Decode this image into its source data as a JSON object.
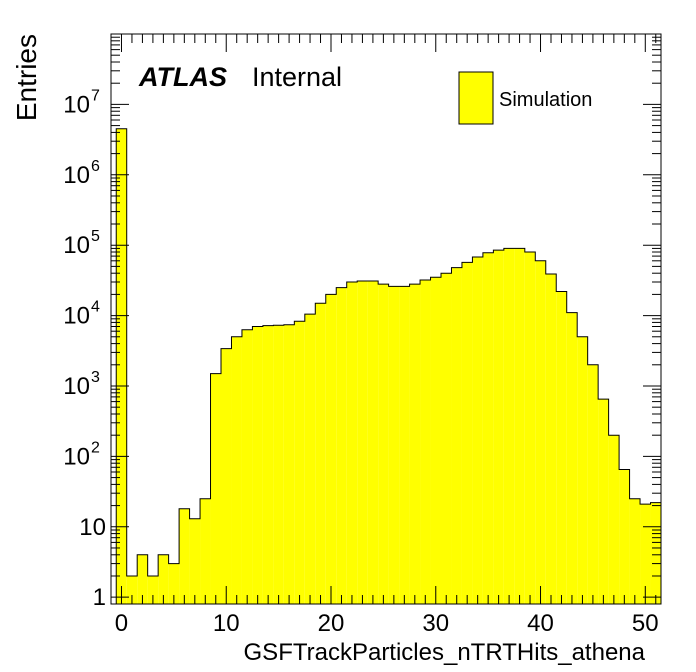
{
  "chart_data": {
    "type": "histogram",
    "xlabel": "GSFTrackParticles_nTRTHits_athena",
    "ylabel": "Entries",
    "xlim": [
      -1,
      51.5
    ],
    "ylim": [
      0.8,
      100000000
    ],
    "log_y": true,
    "bin_width": 1,
    "bin_start": -0.5,
    "x_ticks": [
      0,
      10,
      20,
      30,
      40,
      50
    ],
    "y_ticks": [
      {
        "value": 1,
        "label": "1"
      },
      {
        "value": 10,
        "label": "10"
      },
      {
        "value": 100,
        "label": "10",
        "exp": "2"
      },
      {
        "value": 1000,
        "label": "10",
        "exp": "3"
      },
      {
        "value": 10000,
        "label": "10",
        "exp": "4"
      },
      {
        "value": 100000,
        "label": "10",
        "exp": "5"
      },
      {
        "value": 1000000,
        "label": "10",
        "exp": "6"
      },
      {
        "value": 10000000,
        "label": "10",
        "exp": "7"
      }
    ],
    "fill_color": "#ffff00",
    "line_color": "#000000",
    "series": [
      {
        "name": "Simulation",
        "values": [
          4500000,
          2,
          4,
          2,
          4,
          3,
          18,
          13,
          25,
          1500,
          3400,
          5000,
          6300,
          7000,
          7200,
          7300,
          7400,
          8300,
          10500,
          15000,
          20000,
          25000,
          30000,
          31000,
          31000,
          28000,
          26000,
          26000,
          28000,
          32000,
          35000,
          40000,
          48000,
          57000,
          68000,
          78000,
          85000,
          90000,
          90000,
          80000,
          60000,
          39000,
          22000,
          11000,
          5000,
          2000,
          650,
          200,
          65,
          25,
          21,
          22
        ]
      }
    ],
    "legend_position": "top-right",
    "annotation_bold": "ATLAS",
    "annotation_text": "Internal"
  }
}
